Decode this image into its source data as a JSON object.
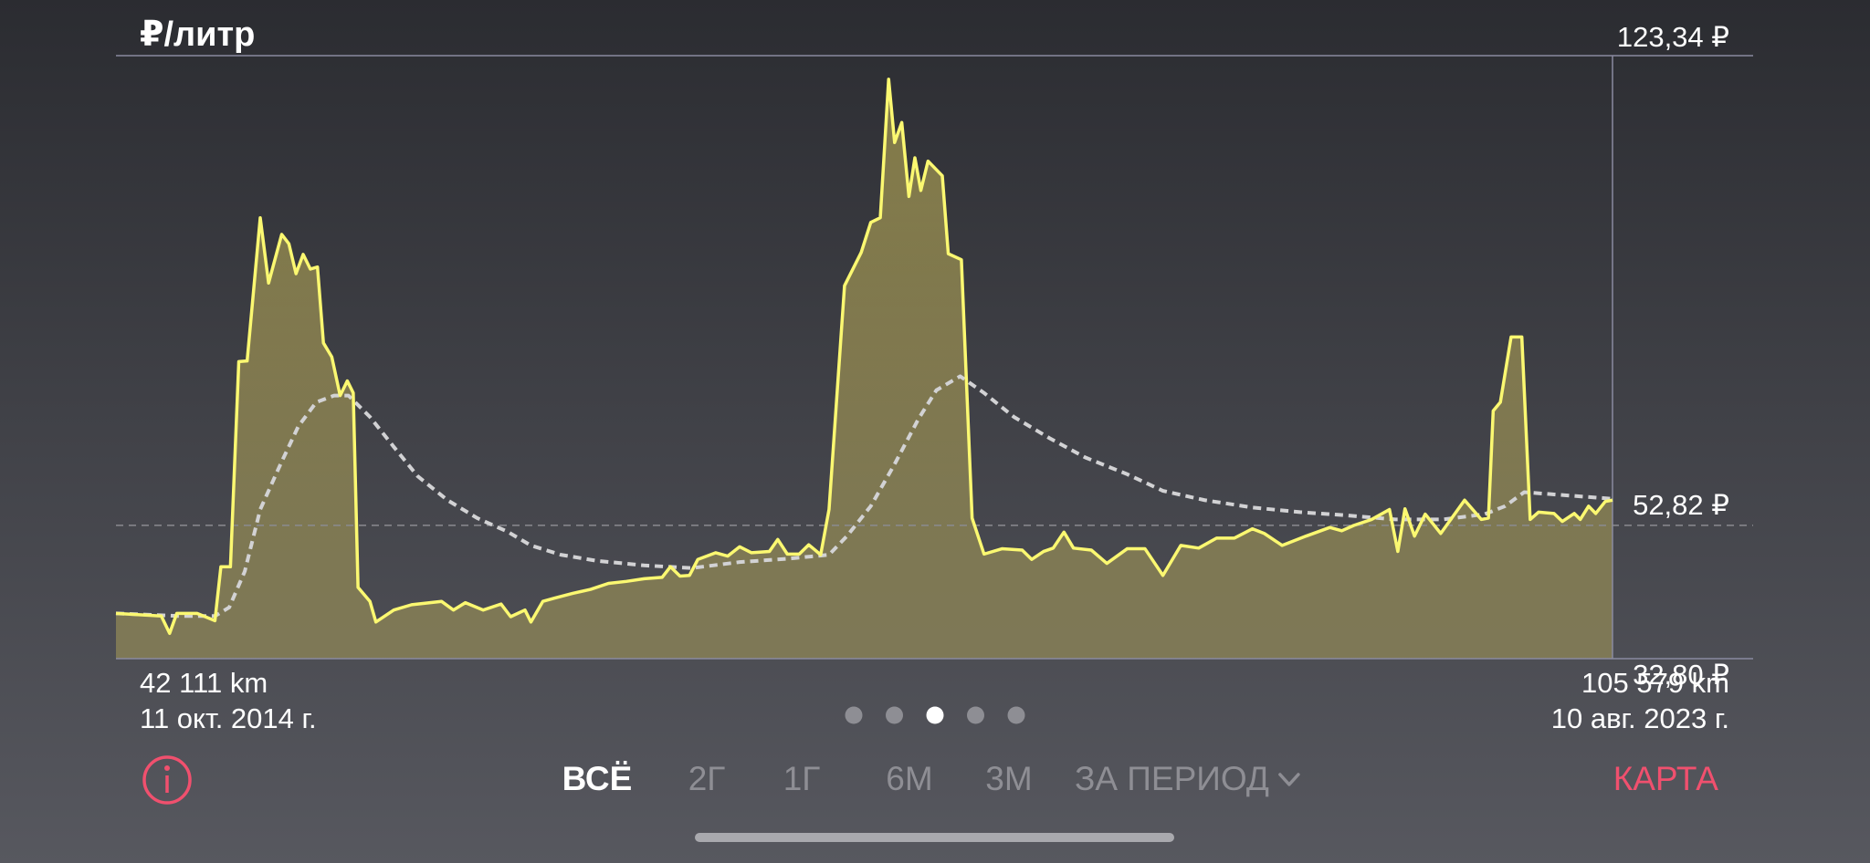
{
  "chart_data": {
    "type": "line",
    "title": "₽/литр",
    "xlim": [
      42111,
      105579
    ],
    "ylim": [
      32.8,
      123.34
    ],
    "xticks": [
      {
        "value": 42111,
        "label": "42 111 km"
      },
      {
        "value": 105579,
        "label": "105 579 km"
      }
    ],
    "x_dates": [
      "11 окт. 2014 г.",
      "10 авг. 2023 г."
    ],
    "yticks": [
      {
        "value": 32.8,
        "label": "32,80 ₽"
      },
      {
        "value": 123.34,
        "label": "123,34 ₽"
      }
    ],
    "reference_line": {
      "value": 52.82,
      "label": "52,82 ₽"
    },
    "series": [
      {
        "color": "#fbf871",
        "fill_color": "#c8b85a",
        "style": "solid",
        "x": [
          42111,
          44033,
          44387,
          44690,
          45550,
          46308,
          46561,
          46966,
          47320,
          47674,
          48230,
          48584,
          49140,
          49444,
          49747,
          50050,
          50354,
          50657,
          50910,
          51264,
          51618,
          51922,
          52174,
          52377,
          52882,
          53135,
          53894,
          54652,
          55917,
          56422,
          56928,
          57687,
          58445,
          58850,
          59457,
          59709,
          60215,
          60721,
          61479,
          62238,
          62996,
          63755,
          64514,
          65272,
          65626,
          66031,
          66435,
          66789,
          67548,
          68053,
          68559,
          69065,
          69823,
          70177,
          70582,
          71088,
          71492,
          71998,
          72352,
          73009,
          73717,
          74122,
          74526,
          74880,
          75133,
          75437,
          75740,
          75993,
          76246,
          76549,
          77156,
          77409,
          77965,
          78420,
          78926,
          79685,
          80544,
          80949,
          81454,
          81859,
          82314,
          82719,
          83477,
          84135,
          84994,
          85753,
          86511,
          87270,
          88029,
          88787,
          89546,
          90304,
          90810,
          91568,
          92580,
          93591,
          94097,
          94603,
          95361,
          96120,
          96474,
          96777,
          97182,
          97637,
          98294,
          99306,
          100014,
          100317,
          100519,
          100823,
          101278,
          101733,
          102087,
          102441,
          103098,
          103452,
          103958,
          104211,
          104565,
          104868,
          105273,
          105579
        ],
        "values": [
          39.6,
          39.2,
          36.6,
          39.6,
          39.6,
          38.5,
          46.6,
          46.6,
          77.4,
          77.5,
          99.0,
          89.2,
          96.5,
          95.1,
          90.6,
          93.5,
          91.3,
          91.6,
          80.2,
          78.1,
          72.3,
          74.5,
          72.7,
          43.5,
          41.4,
          38.3,
          40.1,
          40.9,
          41.4,
          40.1,
          41.2,
          40.1,
          41.0,
          39.1,
          40.1,
          38.3,
          41.4,
          41.9,
          42.6,
          43.2,
          44.1,
          44.4,
          44.8,
          45.0,
          46.6,
          45.2,
          45.3,
          47.7,
          48.7,
          48.2,
          49.6,
          48.7,
          48.9,
          50.7,
          48.5,
          48.5,
          49.9,
          48.4,
          55.2,
          88.8,
          93.8,
          98.3,
          99.0,
          119.8,
          110.3,
          113.3,
          102.2,
          108.0,
          103.1,
          107.5,
          105.3,
          93.6,
          92.7,
          53.9,
          48.5,
          49.3,
          49.1,
          47.7,
          48.9,
          49.4,
          51.8,
          49.4,
          49.1,
          47.1,
          49.3,
          49.3,
          45.3,
          49.8,
          49.4,
          50.9,
          50.9,
          52.3,
          51.6,
          49.8,
          51.2,
          52.5,
          52.0,
          52.8,
          53.7,
          55.2,
          48.9,
          55.3,
          51.2,
          54.5,
          51.6,
          56.6,
          53.7,
          53.9,
          70.0,
          71.3,
          81.1,
          81.1,
          53.7,
          54.8,
          54.6,
          53.4,
          54.6,
          53.7,
          55.7,
          54.6,
          56.4,
          56.6
        ]
      },
      {
        "color": "#d2d2d4",
        "style": "dashed",
        "x": [
          42111,
          44791,
          46308,
          46915,
          47573,
          48230,
          49090,
          49848,
          50607,
          51365,
          51972,
          52882,
          53894,
          54905,
          56169,
          57434,
          58698,
          59709,
          60974,
          62491,
          64514,
          66536,
          68559,
          70582,
          72352,
          73111,
          74122,
          75133,
          76145,
          76903,
          77915,
          78926,
          80190,
          81707,
          83224,
          84994,
          86511,
          88281,
          90304,
          92327,
          94350,
          96373,
          98395,
          100165,
          101025,
          101834,
          102947,
          105579
        ],
        "values": [
          39.6,
          39.2,
          39.2,
          40.5,
          45.9,
          55.2,
          62.0,
          67.7,
          71.3,
          72.3,
          72.3,
          69.1,
          64.6,
          60.2,
          56.6,
          53.9,
          51.9,
          49.8,
          48.4,
          47.5,
          46.8,
          46.4,
          47.3,
          47.8,
          48.4,
          51.2,
          55.7,
          62.0,
          68.8,
          73.1,
          75.2,
          72.7,
          69.1,
          65.9,
          63.0,
          60.5,
          58.0,
          56.6,
          55.5,
          54.8,
          54.3,
          53.7,
          53.7,
          54.5,
          55.7,
          57.8,
          57.5,
          56.8
        ]
      }
    ]
  },
  "pager": {
    "count": 5,
    "active": 2
  },
  "tabs": [
    "ВСЁ",
    "2Г",
    "1Г",
    "6М",
    "3М",
    "ЗА ПЕРИОД"
  ],
  "active_tab": 0,
  "map_button": "КАРТА"
}
